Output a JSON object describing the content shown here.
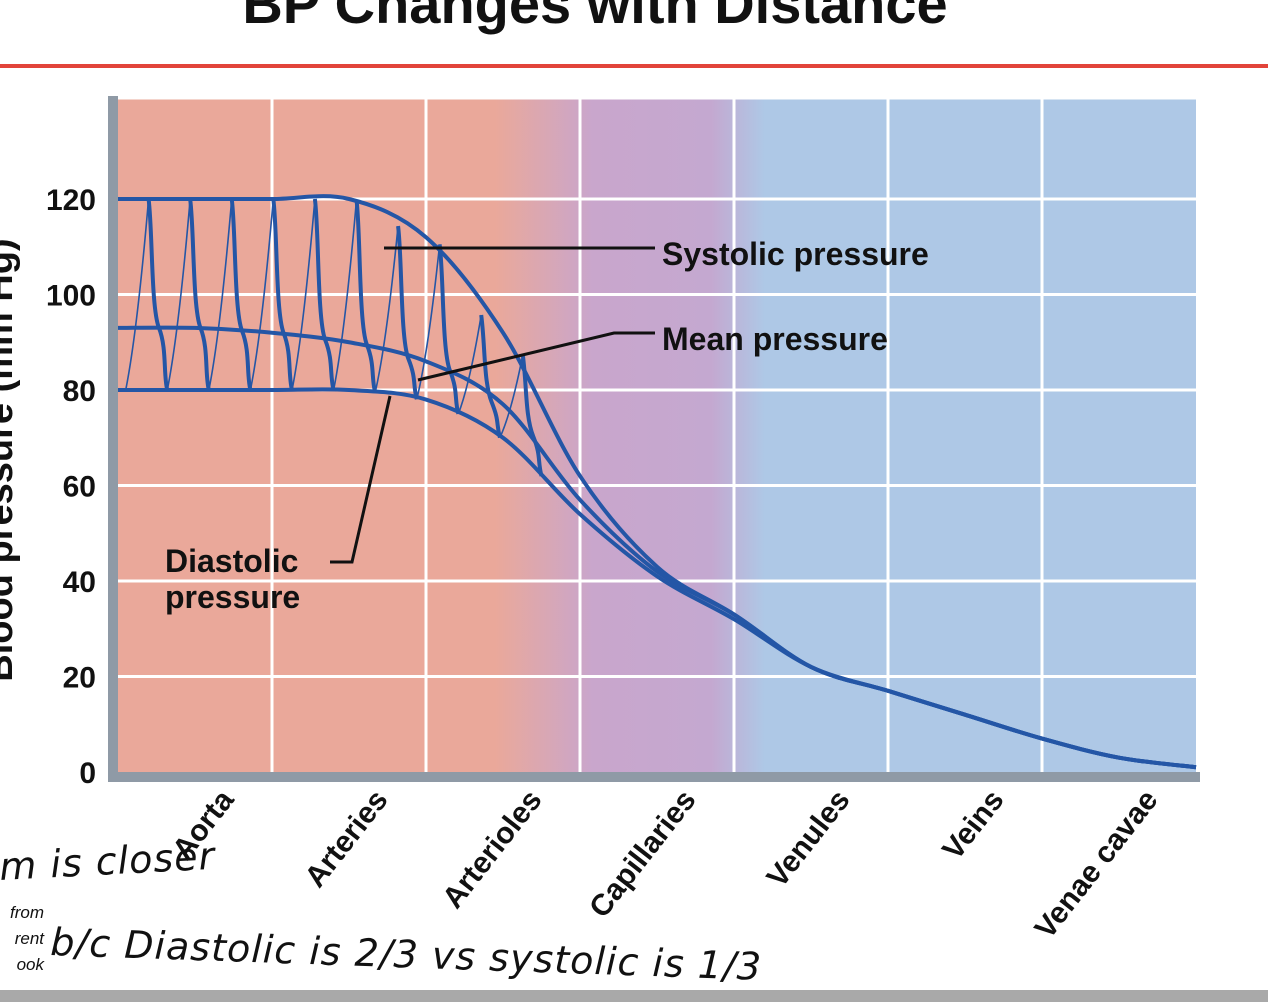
{
  "slide": {
    "title": "BP Changes with Distance"
  },
  "chart_data": {
    "type": "line",
    "title": "BP Changes with Distance",
    "ylabel": "Blood pressure (mm Hg)",
    "xlabel": "",
    "ylim": [
      0,
      140
    ],
    "yticks": [
      0,
      20,
      40,
      60,
      80,
      100,
      120
    ],
    "grid": true,
    "categories": [
      "Aorta",
      "Arteries",
      "Arterioles",
      "Capillaries",
      "Venules",
      "Veins",
      "Venae cavae"
    ],
    "x": [
      0.0,
      0.5,
      1.0,
      1.5,
      2.0,
      2.5,
      3.0,
      3.5,
      4.0,
      4.5,
      5.0,
      5.5,
      6.0,
      6.5,
      7.0
    ],
    "series": [
      {
        "name": "Systolic pressure",
        "values": [
          120,
          120,
          120,
          120,
          112,
          92,
          62,
          43,
          33,
          22,
          17,
          12,
          7,
          3,
          1
        ]
      },
      {
        "name": "Mean pressure",
        "values": [
          93,
          93,
          92,
          90,
          86,
          77,
          57,
          42,
          33,
          22,
          17,
          12,
          7,
          3,
          1
        ]
      },
      {
        "name": "Diastolic pressure",
        "values": [
          80,
          80,
          80,
          80,
          78,
          70,
          54,
          41,
          32,
          22,
          17,
          12,
          7,
          3,
          1
        ]
      }
    ],
    "annotations": [
      {
        "text": "Systolic pressure",
        "series": "Systolic pressure"
      },
      {
        "text": "Mean pressure",
        "series": "Mean pressure"
      },
      {
        "text": "Diastolic pressure",
        "series": "Diastolic pressure"
      }
    ],
    "regions": [
      {
        "name": "arterial",
        "color": "#eaa89a"
      },
      {
        "name": "capillary",
        "color": "#c9a6cc"
      },
      {
        "name": "venous",
        "color": "#aec8e6"
      }
    ],
    "line_color": "#2456a6"
  },
  "handwritten": {
    "line1": "m is closer",
    "line2": "b/c Diastolic is 2/3 vs systolic is 1/3"
  },
  "credit": {
    "lines": [
      "from",
      "rent",
      "ook"
    ]
  }
}
